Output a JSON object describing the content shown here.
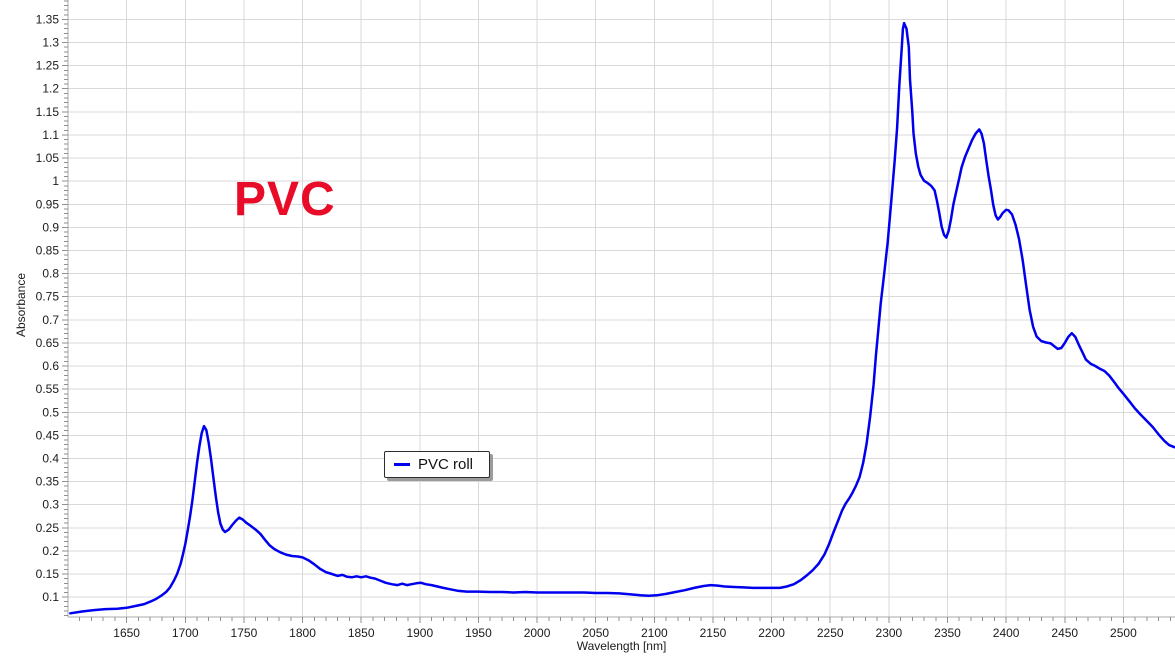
{
  "chart_data": {
    "type": "line",
    "xlabel": "Wavelength [nm]",
    "ylabel": "Absorbance",
    "annotation": {
      "text": "PVC",
      "color": "#e80c28"
    },
    "legend": {
      "label": "PVC roll",
      "position": "middle-left"
    },
    "axes": {
      "x_range": [
        1600,
        2544
      ],
      "y_range": [
        0.057,
        1.392
      ],
      "x_major_ticks": [
        1650,
        1700,
        1750,
        1800,
        1850,
        1900,
        1950,
        2000,
        2050,
        2100,
        2150,
        2200,
        2250,
        2300,
        2350,
        2400,
        2450,
        2500
      ],
      "x_tick_labels": [
        "1650",
        "1700",
        "1750",
        "1800",
        "1850",
        "1900",
        "1950",
        "2000",
        "2050",
        "2100",
        "2150",
        "2200",
        "2250",
        "2300",
        "2350",
        "2400",
        "2450",
        "2500"
      ],
      "x_minor_step": 10,
      "y_major_ticks": [
        0.1,
        0.15,
        0.2,
        0.25,
        0.3,
        0.35,
        0.4,
        0.45,
        0.5,
        0.55,
        0.6,
        0.65,
        0.7,
        0.75,
        0.8,
        0.85,
        0.9,
        0.95,
        1,
        1.05,
        1.1,
        1.15,
        1.2,
        1.25,
        1.3,
        1.35
      ],
      "y_tick_labels": [
        "0.1",
        "0.15",
        "0.2",
        "0.25",
        "0.3",
        "0.35",
        "0.4",
        "0.45",
        "0.5",
        "0.55",
        "0.6",
        "0.65",
        "0.7",
        "0.75",
        "0.8",
        "0.85",
        "0.9",
        "0.95",
        "1",
        "1.05",
        "1.1",
        "1.15",
        "1.2",
        "1.25",
        "1.3",
        "1.35"
      ],
      "y_minor_step": 0.01,
      "grid": true,
      "background": "#ffffff",
      "grid_color": "#d9d9d9",
      "axis_color": "#a9a9a9",
      "tick_color": "#8f8f8f",
      "label_color": "#1b1b1b"
    },
    "series": [
      {
        "name": "PVC roll",
        "color": "#0000ee",
        "line_width": 2.5,
        "points": [
          [
            1602,
            0.065
          ],
          [
            1612,
            0.069
          ],
          [
            1622,
            0.072
          ],
          [
            1632,
            0.074
          ],
          [
            1642,
            0.075
          ],
          [
            1650,
            0.077
          ],
          [
            1658,
            0.081
          ],
          [
            1665,
            0.085
          ],
          [
            1670,
            0.09
          ],
          [
            1675,
            0.096
          ],
          [
            1680,
            0.104
          ],
          [
            1684,
            0.112
          ],
          [
            1687,
            0.121
          ],
          [
            1690,
            0.134
          ],
          [
            1693,
            0.15
          ],
          [
            1696,
            0.172
          ],
          [
            1698,
            0.192
          ],
          [
            1700,
            0.215
          ],
          [
            1702,
            0.243
          ],
          [
            1704,
            0.274
          ],
          [
            1706,
            0.308
          ],
          [
            1708,
            0.348
          ],
          [
            1710,
            0.39
          ],
          [
            1712,
            0.425
          ],
          [
            1714,
            0.455
          ],
          [
            1716,
            0.47
          ],
          [
            1718,
            0.461
          ],
          [
            1720,
            0.434
          ],
          [
            1722,
            0.398
          ],
          [
            1724,
            0.358
          ],
          [
            1726,
            0.318
          ],
          [
            1728,
            0.284
          ],
          [
            1730,
            0.259
          ],
          [
            1732,
            0.246
          ],
          [
            1734,
            0.241
          ],
          [
            1737,
            0.246
          ],
          [
            1740,
            0.256
          ],
          [
            1743,
            0.265
          ],
          [
            1746,
            0.272
          ],
          [
            1749,
            0.268
          ],
          [
            1752,
            0.261
          ],
          [
            1756,
            0.254
          ],
          [
            1760,
            0.246
          ],
          [
            1764,
            0.237
          ],
          [
            1768,
            0.224
          ],
          [
            1772,
            0.212
          ],
          [
            1776,
            0.204
          ],
          [
            1781,
            0.197
          ],
          [
            1786,
            0.192
          ],
          [
            1791,
            0.189
          ],
          [
            1796,
            0.188
          ],
          [
            1800,
            0.186
          ],
          [
            1805,
            0.18
          ],
          [
            1810,
            0.171
          ],
          [
            1815,
            0.161
          ],
          [
            1820,
            0.154
          ],
          [
            1825,
            0.15
          ],
          [
            1830,
            0.146
          ],
          [
            1834,
            0.148
          ],
          [
            1838,
            0.144
          ],
          [
            1842,
            0.143
          ],
          [
            1846,
            0.145
          ],
          [
            1850,
            0.143
          ],
          [
            1854,
            0.145
          ],
          [
            1858,
            0.142
          ],
          [
            1862,
            0.14
          ],
          [
            1866,
            0.136
          ],
          [
            1871,
            0.131
          ],
          [
            1876,
            0.128
          ],
          [
            1881,
            0.126
          ],
          [
            1885,
            0.129
          ],
          [
            1889,
            0.126
          ],
          [
            1893,
            0.128
          ],
          [
            1897,
            0.13
          ],
          [
            1901,
            0.131
          ],
          [
            1905,
            0.128
          ],
          [
            1910,
            0.126
          ],
          [
            1915,
            0.123
          ],
          [
            1920,
            0.12
          ],
          [
            1926,
            0.117
          ],
          [
            1932,
            0.114
          ],
          [
            1940,
            0.112
          ],
          [
            1950,
            0.112
          ],
          [
            1960,
            0.111
          ],
          [
            1970,
            0.111
          ],
          [
            1980,
            0.11
          ],
          [
            1990,
            0.111
          ],
          [
            2000,
            0.11
          ],
          [
            2010,
            0.11
          ],
          [
            2020,
            0.11
          ],
          [
            2030,
            0.11
          ],
          [
            2040,
            0.11
          ],
          [
            2050,
            0.109
          ],
          [
            2060,
            0.109
          ],
          [
            2070,
            0.108
          ],
          [
            2080,
            0.106
          ],
          [
            2088,
            0.104
          ],
          [
            2095,
            0.103
          ],
          [
            2102,
            0.104
          ],
          [
            2110,
            0.107
          ],
          [
            2118,
            0.111
          ],
          [
            2126,
            0.115
          ],
          [
            2134,
            0.12
          ],
          [
            2142,
            0.124
          ],
          [
            2148,
            0.126
          ],
          [
            2154,
            0.125
          ],
          [
            2160,
            0.123
          ],
          [
            2168,
            0.122
          ],
          [
            2176,
            0.121
          ],
          [
            2184,
            0.12
          ],
          [
            2192,
            0.12
          ],
          [
            2200,
            0.12
          ],
          [
            2207,
            0.12
          ],
          [
            2213,
            0.123
          ],
          [
            2219,
            0.128
          ],
          [
            2225,
            0.137
          ],
          [
            2230,
            0.147
          ],
          [
            2235,
            0.158
          ],
          [
            2240,
            0.172
          ],
          [
            2245,
            0.192
          ],
          [
            2249,
            0.215
          ],
          [
            2253,
            0.242
          ],
          [
            2257,
            0.267
          ],
          [
            2260,
            0.287
          ],
          [
            2263,
            0.302
          ],
          [
            2266,
            0.313
          ],
          [
            2269,
            0.326
          ],
          [
            2272,
            0.341
          ],
          [
            2275,
            0.36
          ],
          [
            2278,
            0.39
          ],
          [
            2281,
            0.432
          ],
          [
            2284,
            0.49
          ],
          [
            2287,
            0.56
          ],
          [
            2289,
            0.625
          ],
          [
            2291,
            0.678
          ],
          [
            2293,
            0.735
          ],
          [
            2296,
            0.8
          ],
          [
            2299,
            0.868
          ],
          [
            2302,
            0.955
          ],
          [
            2305,
            1.045
          ],
          [
            2307,
            1.115
          ],
          [
            2309,
            1.21
          ],
          [
            2311,
            1.29
          ],
          [
            2312,
            1.33
          ],
          [
            2313,
            1.342
          ],
          [
            2315,
            1.33
          ],
          [
            2317,
            1.29
          ],
          [
            2318,
            1.22
          ],
          [
            2320,
            1.15
          ],
          [
            2321,
            1.104
          ],
          [
            2323,
            1.06
          ],
          [
            2325,
            1.032
          ],
          [
            2327,
            1.014
          ],
          [
            2330,
            1.001
          ],
          [
            2333,
            0.996
          ],
          [
            2336,
            0.99
          ],
          [
            2339,
            0.98
          ],
          [
            2341,
            0.958
          ],
          [
            2343,
            0.931
          ],
          [
            2345,
            0.902
          ],
          [
            2347,
            0.884
          ],
          [
            2349,
            0.878
          ],
          [
            2351,
            0.893
          ],
          [
            2353,
            0.918
          ],
          [
            2355,
            0.95
          ],
          [
            2358,
            0.984
          ],
          [
            2360,
            1.006
          ],
          [
            2362,
            1.03
          ],
          [
            2365,
            1.053
          ],
          [
            2368,
            1.071
          ],
          [
            2371,
            1.089
          ],
          [
            2374,
            1.103
          ],
          [
            2377,
            1.112
          ],
          [
            2379,
            1.103
          ],
          [
            2381,
            1.082
          ],
          [
            2383,
            1.046
          ],
          [
            2385,
            1.012
          ],
          [
            2387,
            0.982
          ],
          [
            2389,
            0.949
          ],
          [
            2391,
            0.926
          ],
          [
            2393,
            0.917
          ],
          [
            2395,
            0.923
          ],
          [
            2397,
            0.931
          ],
          [
            2400,
            0.938
          ],
          [
            2402,
            0.937
          ],
          [
            2405,
            0.928
          ],
          [
            2408,
            0.906
          ],
          [
            2411,
            0.875
          ],
          [
            2414,
            0.83
          ],
          [
            2417,
            0.775
          ],
          [
            2420,
            0.722
          ],
          [
            2423,
            0.685
          ],
          [
            2426,
            0.664
          ],
          [
            2430,
            0.654
          ],
          [
            2434,
            0.651
          ],
          [
            2438,
            0.649
          ],
          [
            2441,
            0.643
          ],
          [
            2444,
            0.637
          ],
          [
            2447,
            0.639
          ],
          [
            2450,
            0.65
          ],
          [
            2453,
            0.663
          ],
          [
            2456,
            0.671
          ],
          [
            2459,
            0.663
          ],
          [
            2462,
            0.646
          ],
          [
            2465,
            0.63
          ],
          [
            2468,
            0.614
          ],
          [
            2472,
            0.605
          ],
          [
            2476,
            0.6
          ],
          [
            2480,
            0.594
          ],
          [
            2484,
            0.589
          ],
          [
            2488,
            0.579
          ],
          [
            2492,
            0.566
          ],
          [
            2496,
            0.552
          ],
          [
            2500,
            0.54
          ],
          [
            2505,
            0.524
          ],
          [
            2510,
            0.508
          ],
          [
            2515,
            0.494
          ],
          [
            2520,
            0.481
          ],
          [
            2525,
            0.468
          ],
          [
            2530,
            0.452
          ],
          [
            2535,
            0.438
          ],
          [
            2539,
            0.429
          ],
          [
            2543,
            0.425
          ],
          [
            2544,
            0.424
          ]
        ]
      }
    ]
  }
}
